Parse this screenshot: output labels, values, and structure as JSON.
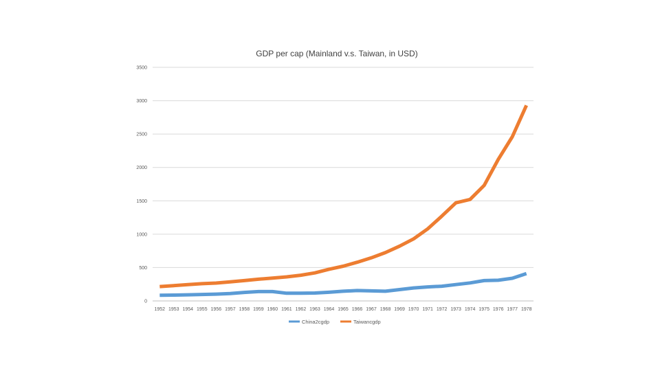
{
  "chart_data": {
    "type": "line",
    "title": "GDP per cap (Mainland v.s. Taiwan, in USD)",
    "xlabel": "",
    "ylabel": "",
    "ylim": [
      0,
      3500
    ],
    "yticks": [
      0,
      500,
      1000,
      1500,
      2000,
      2500,
      3000,
      3500
    ],
    "grid": true,
    "legend_position": "bottom",
    "categories": [
      "1952",
      "1953",
      "1954",
      "1955",
      "1956",
      "1957",
      "1958",
      "1959",
      "1960",
      "1961",
      "1962",
      "1963",
      "1964",
      "1965",
      "1966",
      "1967",
      "1968",
      "1969",
      "1970",
      "1971",
      "1972",
      "1973",
      "1974",
      "1975",
      "1976",
      "1977",
      "1978"
    ],
    "series": [
      {
        "name": "China2cgdp",
        "color": "#5B9BD5",
        "values": [
          85,
          88,
          92,
          97,
          102,
          110,
          128,
          140,
          140,
          115,
          115,
          118,
          130,
          145,
          155,
          150,
          145,
          170,
          195,
          210,
          220,
          245,
          270,
          305,
          310,
          340,
          410
        ]
      },
      {
        "name": "Taiwancgdp",
        "color": "#ED7D31",
        "values": [
          215,
          230,
          245,
          258,
          268,
          285,
          305,
          325,
          343,
          360,
          385,
          420,
          475,
          520,
          580,
          645,
          725,
          820,
          930,
          1080,
          1270,
          1470,
          1520,
          1730,
          2120,
          2460,
          2930
        ]
      }
    ]
  }
}
